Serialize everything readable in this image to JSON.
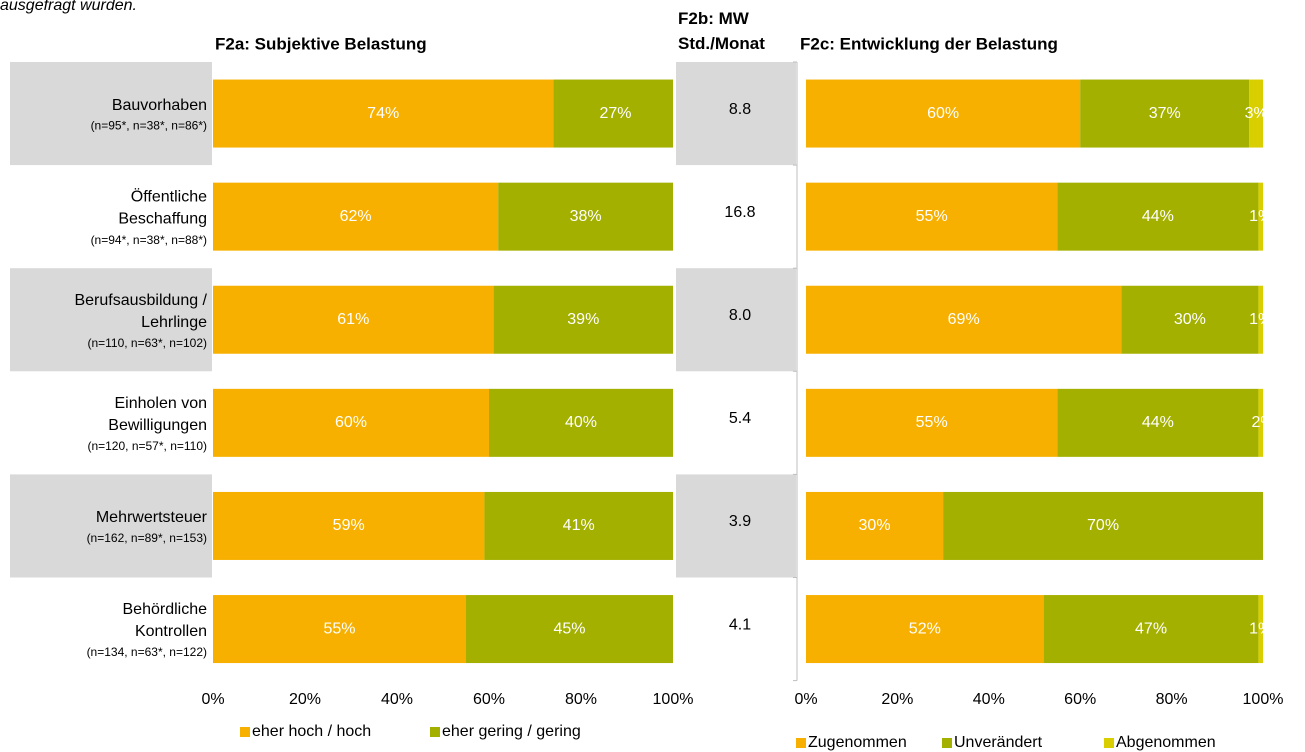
{
  "note": "ausgefragt wurden.",
  "chart_data": [
    {
      "type": "stacked-bar",
      "title": "F2a: Subjektive Belastung",
      "categories": [
        "Bauvorhaben",
        "Öffentliche\nBeschaffung",
        "Berufsausbildung /\nLehrlinge",
        "Einholen von\nBewilligungen",
        "Mehrwertsteuer",
        "Behördliche\nKontrollen"
      ],
      "category_notes": [
        "(n=95*, n=38*, n=86*)",
        "(n=94*, n=38*, n=88*)",
        "(n=110, n=63*, n=102)",
        "(n=120, n=57*, n=110)",
        "(n=162, n=89*, n=153)",
        "(n=134, n=63*, n=122)"
      ],
      "series": [
        {
          "name": "eher hoch / hoch",
          "color": "#f7b000",
          "values": [
            74,
            62,
            61,
            60,
            59,
            55
          ],
          "value_labels": [
            "74%",
            "62%",
            "61%",
            "60%",
            "59%",
            "55%"
          ]
        },
        {
          "name": "eher gering / gering",
          "color": "#a3b000",
          "values": [
            27,
            38,
            39,
            40,
            41,
            45
          ],
          "value_labels": [
            "27%",
            "38%",
            "39%",
            "40%",
            "41%",
            "45%"
          ]
        }
      ],
      "xlim": [
        0,
        100
      ],
      "xticks": [
        {
          "value": 0,
          "label": "0%"
        },
        {
          "value": 20,
          "label": "20%"
        },
        {
          "value": 40,
          "label": "40%"
        },
        {
          "value": 60,
          "label": "60%"
        },
        {
          "value": 80,
          "label": "80%"
        },
        {
          "value": 100,
          "label": "100%"
        }
      ]
    },
    {
      "type": "value-column",
      "title": "F2b: MW\nStd./Monat",
      "values": [
        8.8,
        16.8,
        8.0,
        5.4,
        3.9,
        4.1
      ],
      "value_labels": [
        "8.8",
        "16.8",
        "8.0",
        "5.4",
        "3.9",
        "4.1"
      ]
    },
    {
      "type": "stacked-bar",
      "title": "F2c: Entwicklung der Belastung",
      "series": [
        {
          "name": "Zugenommen",
          "color": "#f7b000",
          "values": [
            60,
            55,
            69,
            55,
            30,
            52
          ],
          "value_labels": [
            "60%",
            "55%",
            "69%",
            "55%",
            "30%",
            "52%"
          ]
        },
        {
          "name": "Unverändert",
          "color": "#a3b000",
          "values": [
            37,
            44,
            30,
            44,
            70,
            47
          ],
          "value_labels": [
            "37%",
            "44%",
            "30%",
            "44%",
            "70%",
            "47%"
          ]
        },
        {
          "name": "Abgenommen",
          "color": "#d9cf00",
          "values": [
            3,
            1,
            1,
            2,
            null,
            1
          ],
          "value_labels": [
            "3%",
            "1%",
            "1%",
            "2%",
            null,
            "1%"
          ]
        }
      ],
      "xlim": [
        0,
        100
      ],
      "xticks": [
        {
          "value": 0,
          "label": "0%"
        },
        {
          "value": 20,
          "label": "20%"
        },
        {
          "value": 40,
          "label": "40%"
        },
        {
          "value": 60,
          "label": "60%"
        },
        {
          "value": 80,
          "label": "80%"
        },
        {
          "value": 100,
          "label": "100%"
        }
      ]
    }
  ]
}
